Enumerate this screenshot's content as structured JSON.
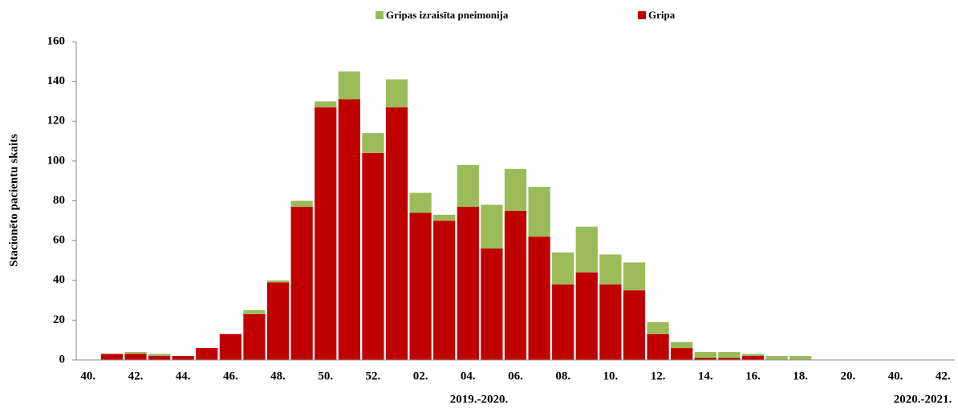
{
  "chart_data": {
    "type": "stacked_bar",
    "y_label": "Stacionēto pacientu skaits",
    "categories": [
      "40.",
      null,
      "42.",
      null,
      "44.",
      null,
      "46.",
      null,
      "48.",
      null,
      "50.",
      null,
      "52.",
      null,
      "02.",
      null,
      "04.",
      null,
      "06.",
      null,
      "08.",
      null,
      "10.",
      null,
      "12.",
      null,
      "14.",
      null,
      "16.",
      null,
      "18.",
      null,
      "20.",
      null,
      "40.",
      null,
      "42."
    ],
    "series": [
      {
        "name": "Gripa",
        "color": "#c00000",
        "values": [
          0,
          3,
          3,
          2,
          2,
          6,
          13,
          23,
          39,
          77,
          127,
          131,
          104,
          127,
          74,
          70,
          77,
          56,
          75,
          62,
          38,
          44,
          38,
          35,
          13,
          6,
          1,
          1,
          2,
          0,
          0,
          0,
          0,
          0,
          0,
          0,
          0
        ]
      },
      {
        "name": "Gripas izraisīta pneimonija",
        "color": "#9bbb59",
        "values": [
          0,
          0,
          1,
          1,
          0,
          0,
          0,
          2,
          1,
          3,
          3,
          14,
          10,
          14,
          10,
          3,
          21,
          22,
          21,
          25,
          16,
          23,
          15,
          14,
          6,
          3,
          3,
          3,
          1,
          2,
          2,
          0,
          0,
          0,
          0,
          0,
          0
        ]
      }
    ],
    "period_labels": [
      "2019.-2020.",
      "2020.-2021."
    ],
    "ylim": [
      0,
      160
    ],
    "yticks": [
      0,
      20,
      40,
      60,
      80,
      100,
      120,
      140,
      160
    ]
  }
}
